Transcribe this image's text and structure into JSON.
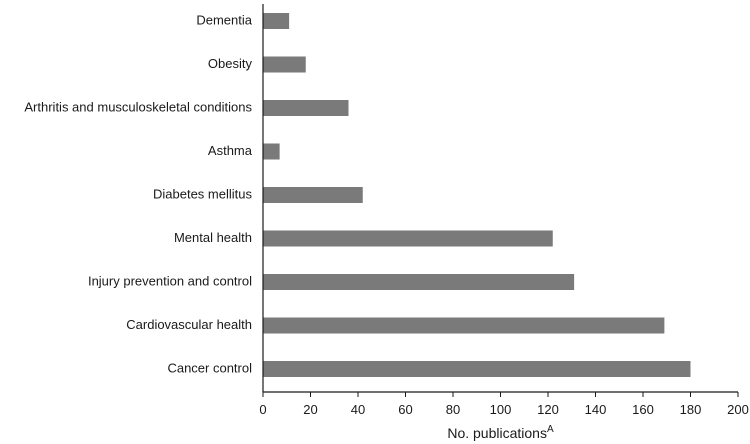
{
  "chart_data": {
    "type": "bar",
    "orientation": "horizontal",
    "categories": [
      "Dementia",
      "Obesity",
      "Arthritis and musculoskeletal conditions",
      "Asthma",
      "Diabetes mellitus",
      "Mental health",
      "Injury prevention and control",
      "Cardiovascular health",
      "Cancer control"
    ],
    "values": [
      11,
      18,
      36,
      7,
      42,
      122,
      131,
      169,
      180
    ],
    "xlabel": "No. publications",
    "xlabel_superscript": "A",
    "ylabel": "",
    "title": "",
    "xlim": [
      0,
      200
    ],
    "x_ticks": [
      0,
      20,
      40,
      60,
      80,
      100,
      120,
      140,
      160,
      180,
      200
    ],
    "bar_color": "#7a7a7a",
    "grid": false,
    "legend": "none"
  }
}
